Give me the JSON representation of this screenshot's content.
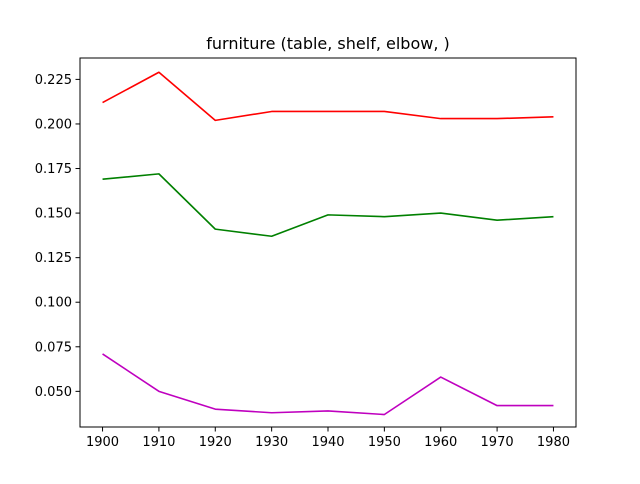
{
  "chart_data": {
    "type": "line",
    "title": "furniture (table, shelf, elbow, )",
    "xlabel": "",
    "ylabel": "",
    "x": [
      1900,
      1910,
      1920,
      1930,
      1940,
      1950,
      1960,
      1970,
      1980
    ],
    "xlim": [
      1896,
      1984
    ],
    "ylim": [
      0.03,
      0.237
    ],
    "xticks": [
      "1900",
      "1910",
      "1920",
      "1930",
      "1940",
      "1950",
      "1960",
      "1970",
      "1980"
    ],
    "yticks": [
      "0.050",
      "0.075",
      "0.100",
      "0.125",
      "0.150",
      "0.175",
      "0.200",
      "0.225"
    ],
    "grid": false,
    "legend": "none",
    "series": [
      {
        "color": "#ff0000",
        "values": [
          0.212,
          0.229,
          0.202,
          0.207,
          0.207,
          0.207,
          0.203,
          0.203,
          0.204
        ]
      },
      {
        "color": "#008000",
        "values": [
          0.169,
          0.172,
          0.141,
          0.137,
          0.149,
          0.148,
          0.15,
          0.146,
          0.148
        ]
      },
      {
        "color": "#bf00bf",
        "values": [
          0.071,
          0.05,
          0.04,
          0.038,
          0.039,
          0.037,
          0.058,
          0.042,
          0.042
        ]
      }
    ]
  }
}
